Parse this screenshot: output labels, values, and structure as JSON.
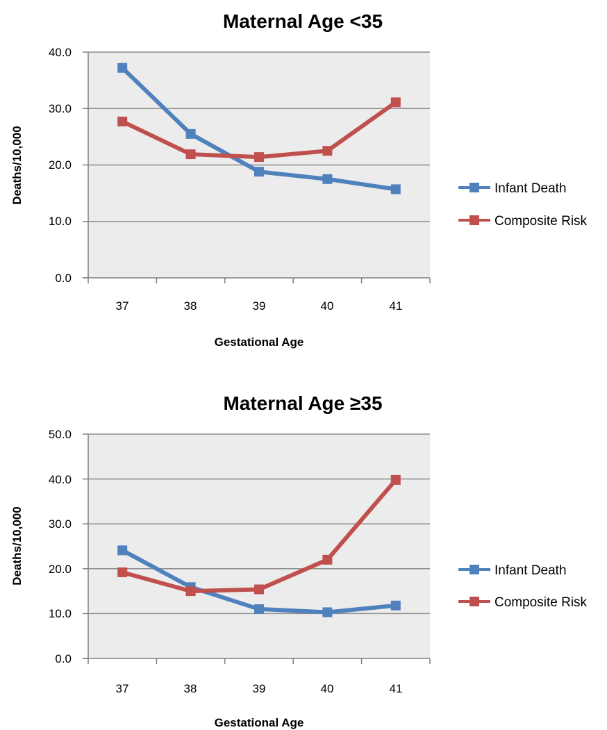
{
  "chart_data": [
    {
      "type": "line",
      "title": "Maternal Age <35",
      "xlabel": "Gestational Age",
      "ylabel": "Deaths/10,000",
      "categories": [
        "37",
        "38",
        "39",
        "40",
        "41"
      ],
      "ylim": [
        0,
        40
      ],
      "yticks": [
        "0.0",
        "10.0",
        "20.0",
        "30.0",
        "40.0"
      ],
      "grid": true,
      "legend_position": "right",
      "series": [
        {
          "name": "Infant Death",
          "color": "#4F81BD",
          "values": [
            37.2,
            25.5,
            18.8,
            17.5,
            15.7
          ]
        },
        {
          "name": "Composite Risk",
          "color": "#C0504D",
          "values": [
            27.7,
            21.9,
            21.4,
            22.5,
            31.1
          ]
        }
      ]
    },
    {
      "type": "line",
      "title": "Maternal Age ≥35",
      "xlabel": "Gestational Age",
      "ylabel": "Deaths/10,000",
      "categories": [
        "37",
        "38",
        "39",
        "40",
        "41"
      ],
      "ylim": [
        0,
        50
      ],
      "yticks": [
        "0.0",
        "10.0",
        "20.0",
        "30.0",
        "40.0",
        "50.0"
      ],
      "grid": true,
      "legend_position": "right",
      "series": [
        {
          "name": "Infant Death",
          "color": "#4F81BD",
          "values": [
            24.1,
            15.9,
            11.0,
            10.3,
            11.8
          ]
        },
        {
          "name": "Composite Risk",
          "color": "#C0504D",
          "values": [
            19.2,
            15.0,
            15.4,
            22.0,
            39.8
          ]
        }
      ]
    }
  ]
}
